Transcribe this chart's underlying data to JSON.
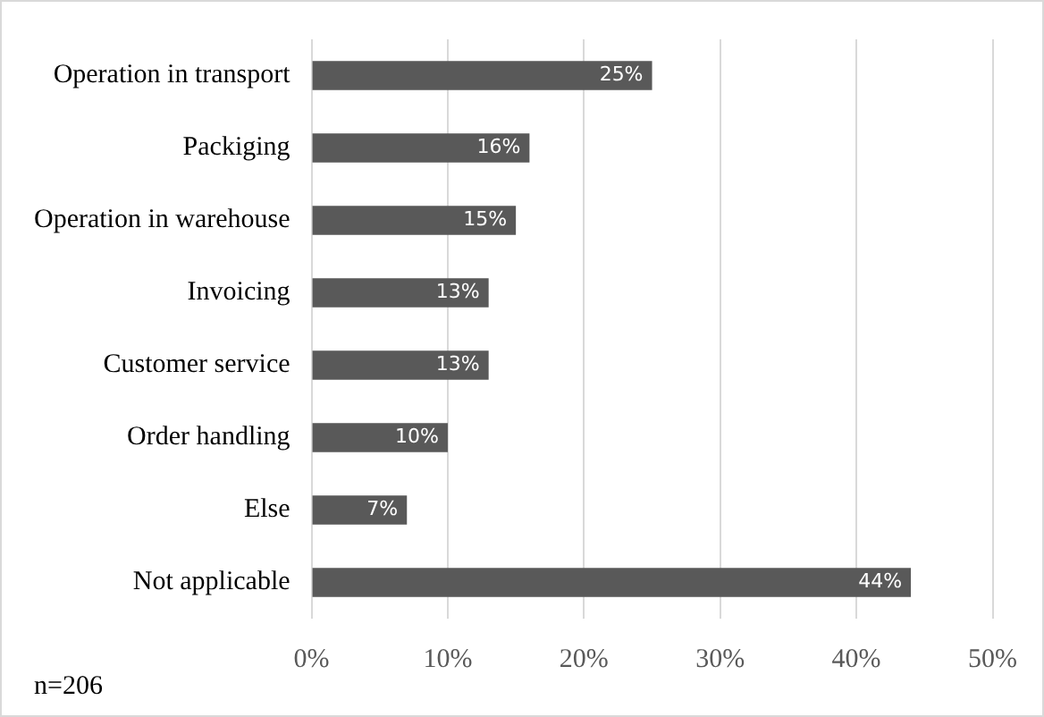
{
  "chart_data": {
    "type": "bar",
    "orientation": "horizontal",
    "categories": [
      "Operation in transport",
      "Packiging",
      "Operation in warehouse",
      "Invoicing",
      "Customer service",
      "Order handling",
      "Else",
      "Not applicable"
    ],
    "values": [
      25,
      16,
      15,
      13,
      13,
      10,
      7,
      44
    ],
    "value_labels": [
      "25%",
      "16%",
      "15%",
      "13%",
      "13%",
      "10%",
      "7%",
      "44%"
    ],
    "color": "#595959",
    "xlim": [
      0,
      50
    ],
    "xticks": [
      {
        "value": 0,
        "label": "0%"
      },
      {
        "value": 10,
        "label": "10%"
      },
      {
        "value": 20,
        "label": "20%"
      },
      {
        "value": 30,
        "label": "30%"
      },
      {
        "value": 40,
        "label": "40%"
      },
      {
        "value": 50,
        "label": "50%"
      }
    ],
    "grid": "x",
    "legend": false,
    "annotations": [
      "n=206"
    ]
  }
}
